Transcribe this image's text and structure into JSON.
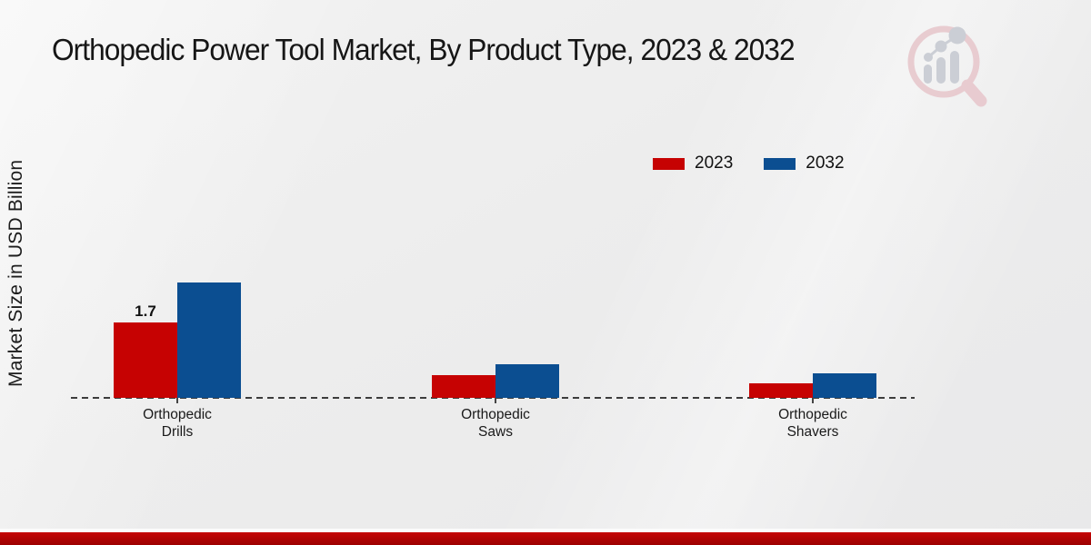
{
  "title": "Orthopedic Power Tool Market, By Product Type, 2023 & 2032",
  "y_axis_label": "Market Size in USD Billion",
  "colors": {
    "series_2023": "#c60202",
    "series_2032": "#0b4e91",
    "footer_band_top": "#c50404",
    "footer_band_bottom": "#9c0101"
  },
  "legend": {
    "items": [
      {
        "label": "2023",
        "color": "#c60202"
      },
      {
        "label": "2032",
        "color": "#0b4e91"
      }
    ]
  },
  "chart_data": {
    "type": "bar",
    "categories": [
      "Orthopedic Drills",
      "Orthopedic Saws",
      "Orthopedic Shavers"
    ],
    "series": [
      {
        "name": "2023",
        "color": "#c60202",
        "values": [
          1.7,
          0.5,
          0.33
        ]
      },
      {
        "name": "2032",
        "color": "#0b4e91",
        "values": [
          2.6,
          0.75,
          0.55
        ]
      }
    ],
    "value_labels": [
      {
        "series": "2023",
        "category": "Orthopedic Drills",
        "text": "1.7"
      }
    ],
    "title": "Orthopedic Power Tool Market, By Product Type, 2023 & 2032",
    "xlabel": "",
    "ylabel": "Market Size in USD Billion",
    "ylim": [
      0,
      3
    ],
    "grid": false,
    "baseline_style": "dashed",
    "legend_position": "top-right"
  },
  "logo": {
    "name": "market-research-future-watermark"
  }
}
